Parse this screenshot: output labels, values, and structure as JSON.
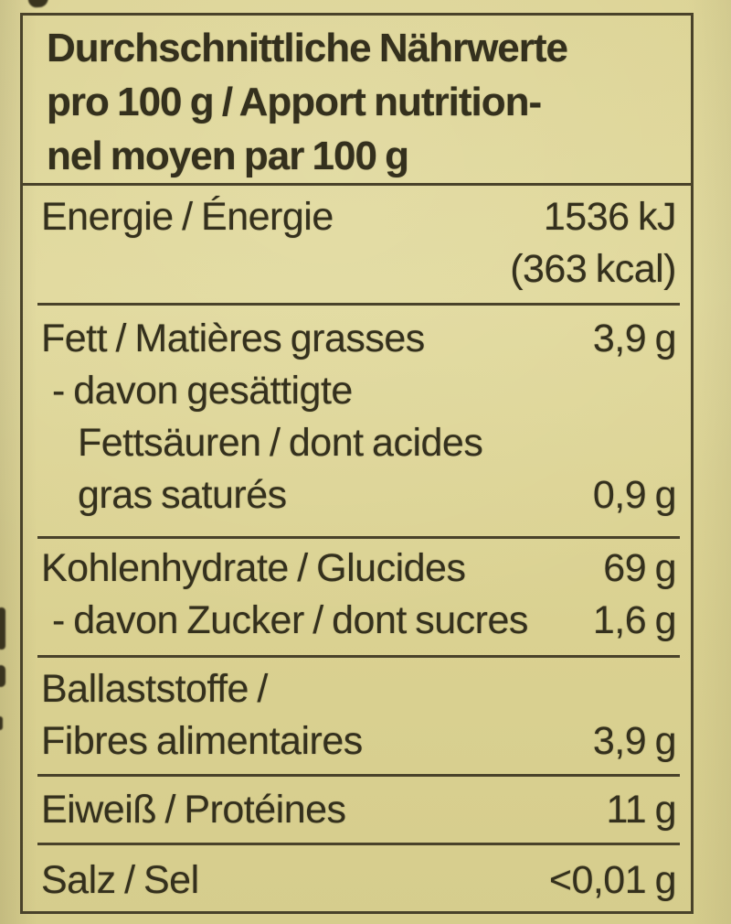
{
  "label": {
    "colors": {
      "background": "#dcd394",
      "ink": "#34301d",
      "line": "#49422a"
    },
    "header": {
      "line1": "Durchschnittliche Nährwerte",
      "line2": "pro 100 g / Apport nutrition-",
      "line3": "nel moyen par 100 g"
    },
    "rows": {
      "energy": {
        "name": "Energie / Énergie",
        "value_kj": "1536 kJ",
        "value_kcal": "(363 kcal)"
      },
      "fat": {
        "name": "Fett / Matières grasses",
        "value": "3,9 g"
      },
      "fat_saturated": {
        "name_line1": "- davon gesättigte",
        "name_line2": "Fettsäuren / dont acides",
        "name_line3": "gras saturés",
        "value": "0,9 g"
      },
      "carbohydrates": {
        "name": "Kohlenhydrate / Glucides",
        "value": "69 g"
      },
      "sugars": {
        "name": "- davon Zucker / dont sucres",
        "value": "1,6 g"
      },
      "fiber": {
        "name_line1": "Ballaststoffe /",
        "name_line2": "Fibres alimentaires",
        "value": "3,9 g"
      },
      "protein": {
        "name": "Eiweiß / Protéines",
        "value": "11 g"
      },
      "salt": {
        "name": "Salz / Sel",
        "value": "<0,01 g"
      }
    }
  }
}
